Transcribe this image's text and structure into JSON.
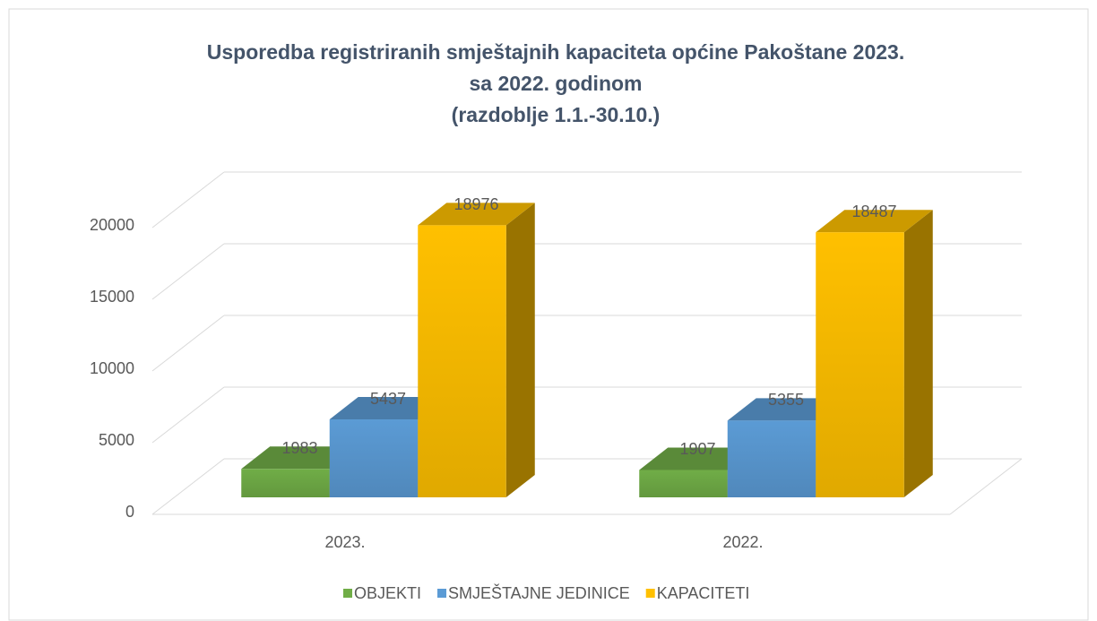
{
  "chart_data": {
    "type": "bar3d",
    "title": [
      "Usporedba registriranih smještajnih kapaciteta općine Pakoštane 2023.",
      "sa 2022. godinom",
      "(razdoblje 1.1.-30.10.)"
    ],
    "categories": [
      "2023.",
      "2022."
    ],
    "series": [
      {
        "name": "OBJEKTI",
        "color": "#70ad47",
        "values": [
          1983,
          1907
        ]
      },
      {
        "name": "SMJEŠTAJNE JEDINICE",
        "color": "#5b9bd5",
        "values": [
          5437,
          5355
        ]
      },
      {
        "name": "KAPACITETI",
        "color": "#ffc000",
        "values": [
          18976,
          18487
        ]
      }
    ],
    "ylim": [
      0,
      20000
    ],
    "yticks": [
      0,
      5000,
      10000,
      15000,
      20000
    ],
    "grid": true,
    "legend": "bottom"
  }
}
